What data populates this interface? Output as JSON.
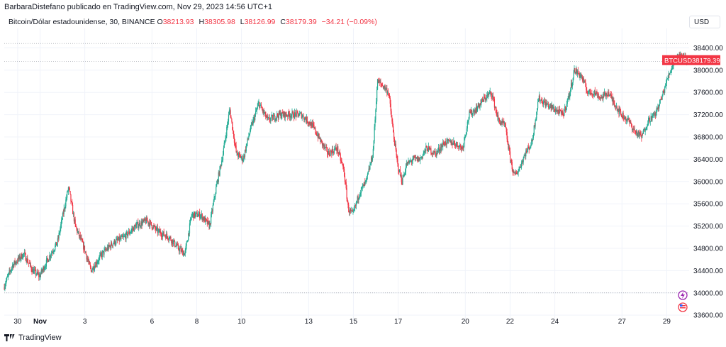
{
  "header": {
    "publish_line": "BarbaraDistefano publicado en TradingView.com, Nov 29, 2023 14:56 UTC+1"
  },
  "legend": {
    "symbol_desc": "Bitcoin/Dólar estadounidense, 30, BINANCE",
    "open_label": "O",
    "open": "38213.93",
    "high_label": "H",
    "high": "38305.98",
    "low_label": "L",
    "low": "38126.99",
    "close_label": "C",
    "close": "38179.39",
    "change": "−34.21 (−0.09%)"
  },
  "currency": "USD",
  "price_tag": {
    "symbol": "BTCUSD",
    "price": "38179.39"
  },
  "footer": {
    "brand": "TradingView"
  },
  "colors": {
    "up": "#22ab94",
    "down": "#f23645",
    "grid": "#f0f3fa",
    "tag": "#f23645"
  },
  "icons": [
    "lightning-icon",
    "us-flag-icon",
    "tradingview-logo-icon"
  ],
  "chart_data": {
    "type": "candlestick",
    "title": "Bitcoin/Dólar estadounidense, 30, BINANCE",
    "ylim": [
      33500,
      38750
    ],
    "y_ticks": [
      33600,
      34000,
      34400,
      34800,
      35200,
      35600,
      36000,
      36400,
      36800,
      37200,
      37600,
      38000,
      38400
    ],
    "y_tick_labels": [
      "33600.00",
      "34000.00",
      "34400.00",
      "34800.00",
      "35200.00",
      "35600.00",
      "36000.00",
      "36400.00",
      "36800.00",
      "37200.00",
      "37600.00",
      "38000.00",
      "38400.00"
    ],
    "x_ticks": [
      {
        "label": "30",
        "bold": false,
        "day": 1
      },
      {
        "label": "Nov",
        "bold": true,
        "day": 2
      },
      {
        "label": "3",
        "bold": false,
        "day": 4
      },
      {
        "label": "6",
        "bold": false,
        "day": 7
      },
      {
        "label": "8",
        "bold": false,
        "day": 9
      },
      {
        "label": "10",
        "bold": false,
        "day": 11
      },
      {
        "label": "13",
        "bold": false,
        "day": 14
      },
      {
        "label": "15",
        "bold": false,
        "day": 16
      },
      {
        "label": "17",
        "bold": false,
        "day": 18
      },
      {
        "label": "20",
        "bold": false,
        "day": 21
      },
      {
        "label": "22",
        "bold": false,
        "day": 23
      },
      {
        "label": "24",
        "bold": false,
        "day": 25
      },
      {
        "label": "27",
        "bold": false,
        "day": 28
      },
      {
        "label": "29",
        "bold": false,
        "day": 30
      }
    ],
    "x_range_days": [
      0.4,
      31.0
    ],
    "last_price": 38179.39,
    "dotted_levels": [
      38480,
      38160,
      34000
    ],
    "price_path": [
      [
        0.4,
        34100
      ],
      [
        0.8,
        34500
      ],
      [
        1.3,
        34700
      ],
      [
        1.7,
        34400
      ],
      [
        2.0,
        34300
      ],
      [
        2.5,
        34700
      ],
      [
        2.8,
        34900
      ],
      [
        3.1,
        35500
      ],
      [
        3.3,
        35900
      ],
      [
        3.6,
        35200
      ],
      [
        4.0,
        34800
      ],
      [
        4.3,
        34400
      ],
      [
        4.8,
        34700
      ],
      [
        5.3,
        34900
      ],
      [
        5.8,
        35000
      ],
      [
        6.3,
        35200
      ],
      [
        6.8,
        35300
      ],
      [
        7.3,
        35100
      ],
      [
        7.8,
        35000
      ],
      [
        8.2,
        34800
      ],
      [
        8.5,
        34700
      ],
      [
        8.8,
        35400
      ],
      [
        9.2,
        35400
      ],
      [
        9.6,
        35200
      ],
      [
        9.9,
        35900
      ],
      [
        10.2,
        36500
      ],
      [
        10.5,
        37300
      ],
      [
        10.8,
        36500
      ],
      [
        11.1,
        36400
      ],
      [
        11.4,
        36900
      ],
      [
        11.8,
        37400
      ],
      [
        12.2,
        37100
      ],
      [
        12.7,
        37200
      ],
      [
        13.2,
        37200
      ],
      [
        13.7,
        37200
      ],
      [
        14.2,
        37000
      ],
      [
        14.6,
        36700
      ],
      [
        14.9,
        36500
      ],
      [
        15.3,
        36600
      ],
      [
        15.6,
        36200
      ],
      [
        15.8,
        35500
      ],
      [
        16.0,
        35400
      ],
      [
        16.3,
        35800
      ],
      [
        16.6,
        36000
      ],
      [
        16.9,
        36500
      ],
      [
        17.1,
        37800
      ],
      [
        17.4,
        37700
      ],
      [
        17.6,
        37600
      ],
      [
        17.8,
        36900
      ],
      [
        18.0,
        36300
      ],
      [
        18.2,
        36000
      ],
      [
        18.4,
        36300
      ],
      [
        18.7,
        36400
      ],
      [
        19.0,
        36400
      ],
      [
        19.3,
        36600
      ],
      [
        19.7,
        36500
      ],
      [
        20.1,
        36700
      ],
      [
        20.5,
        36700
      ],
      [
        20.9,
        36600
      ],
      [
        21.2,
        37200
      ],
      [
        21.5,
        37300
      ],
      [
        21.9,
        37500
      ],
      [
        22.2,
        37600
      ],
      [
        22.5,
        37100
      ],
      [
        22.8,
        37000
      ],
      [
        23.0,
        36500
      ],
      [
        23.2,
        36100
      ],
      [
        23.4,
        36200
      ],
      [
        23.7,
        36500
      ],
      [
        24.0,
        36700
      ],
      [
        24.3,
        37500
      ],
      [
        24.6,
        37400
      ],
      [
        25.0,
        37300
      ],
      [
        25.4,
        37200
      ],
      [
        25.7,
        37600
      ],
      [
        25.9,
        38000
      ],
      [
        26.2,
        37900
      ],
      [
        26.5,
        37600
      ],
      [
        26.8,
        37600
      ],
      [
        27.1,
        37500
      ],
      [
        27.4,
        37600
      ],
      [
        27.7,
        37400
      ],
      [
        28.0,
        37200
      ],
      [
        28.3,
        37100
      ],
      [
        28.6,
        36900
      ],
      [
        28.9,
        36800
      ],
      [
        29.2,
        37100
      ],
      [
        29.5,
        37200
      ],
      [
        29.8,
        37500
      ],
      [
        30.1,
        37900
      ],
      [
        30.4,
        38200
      ],
      [
        30.7,
        38300
      ],
      [
        30.9,
        38180
      ]
    ]
  }
}
